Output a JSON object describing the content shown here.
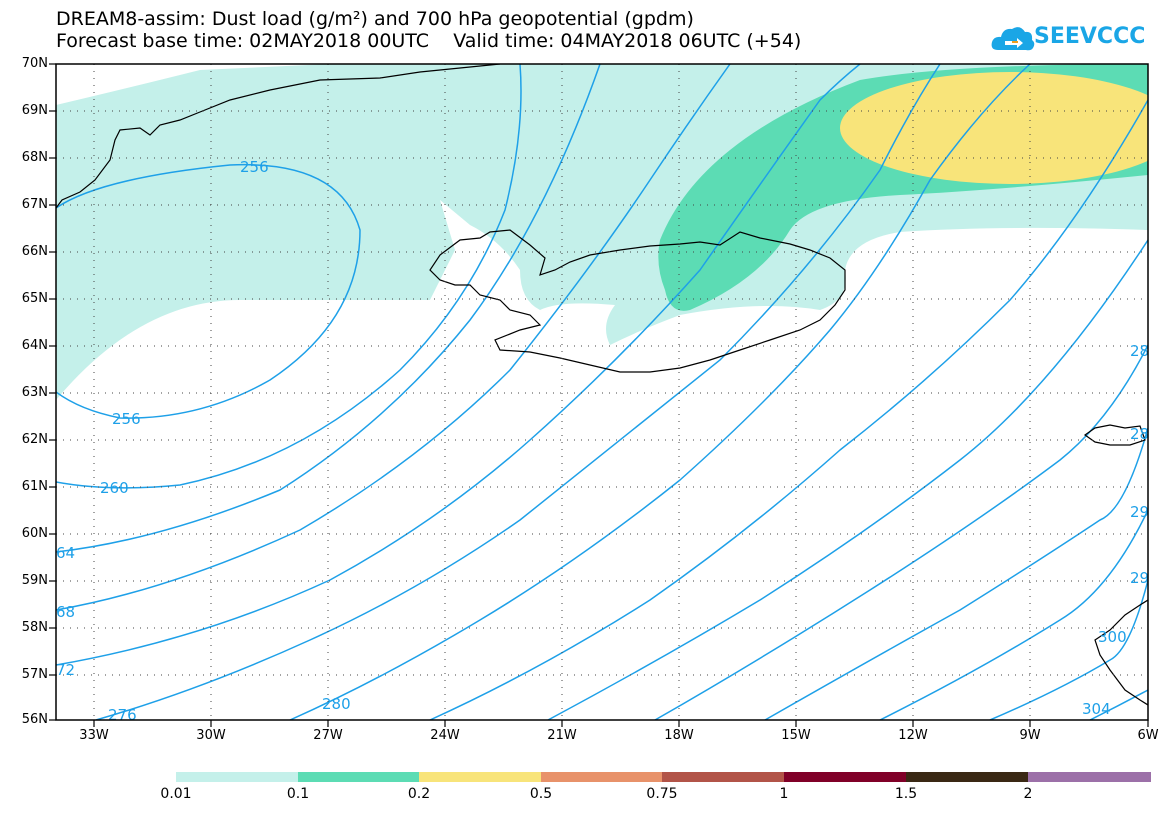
{
  "header": {
    "title_line1": "DREAM8-assim: Dust load (g/m²) and 700 hPa geopotential (gpdm)",
    "title_line2": "Forecast base time: 02MAY2018 00UTC    Valid time: 04MAY2018 06UTC (+54)",
    "logo_text": "SEEVCCC"
  },
  "map": {
    "lat_labels": [
      "70N",
      "69N",
      "68N",
      "67N",
      "66N",
      "65N",
      "64N",
      "63N",
      "62N",
      "61N",
      "60N",
      "59N",
      "58N",
      "57N",
      "56N"
    ],
    "lon_labels": [
      "33W",
      "30W",
      "27W",
      "24W",
      "21W",
      "18W",
      "15W",
      "12W",
      "9W",
      "6W"
    ],
    "contour_labels": [
      "256",
      "256",
      "260",
      "64",
      "68",
      "72",
      "276",
      "280",
      "28",
      "28",
      "29",
      "29",
      "300",
      "304"
    ],
    "contour_color": "#1ea0e8",
    "coast_color": "#000000"
  },
  "colorbar": {
    "labels": [
      "0.01",
      "0.1",
      "0.2",
      "0.5",
      "0.75",
      "1",
      "1.5",
      "2"
    ],
    "colors": [
      "#c4f0ea",
      "#5cdcb4",
      "#f8e47a",
      "#e8926a",
      "#b25448",
      "#800028",
      "#3a2814",
      "#9c70a8"
    ]
  }
}
